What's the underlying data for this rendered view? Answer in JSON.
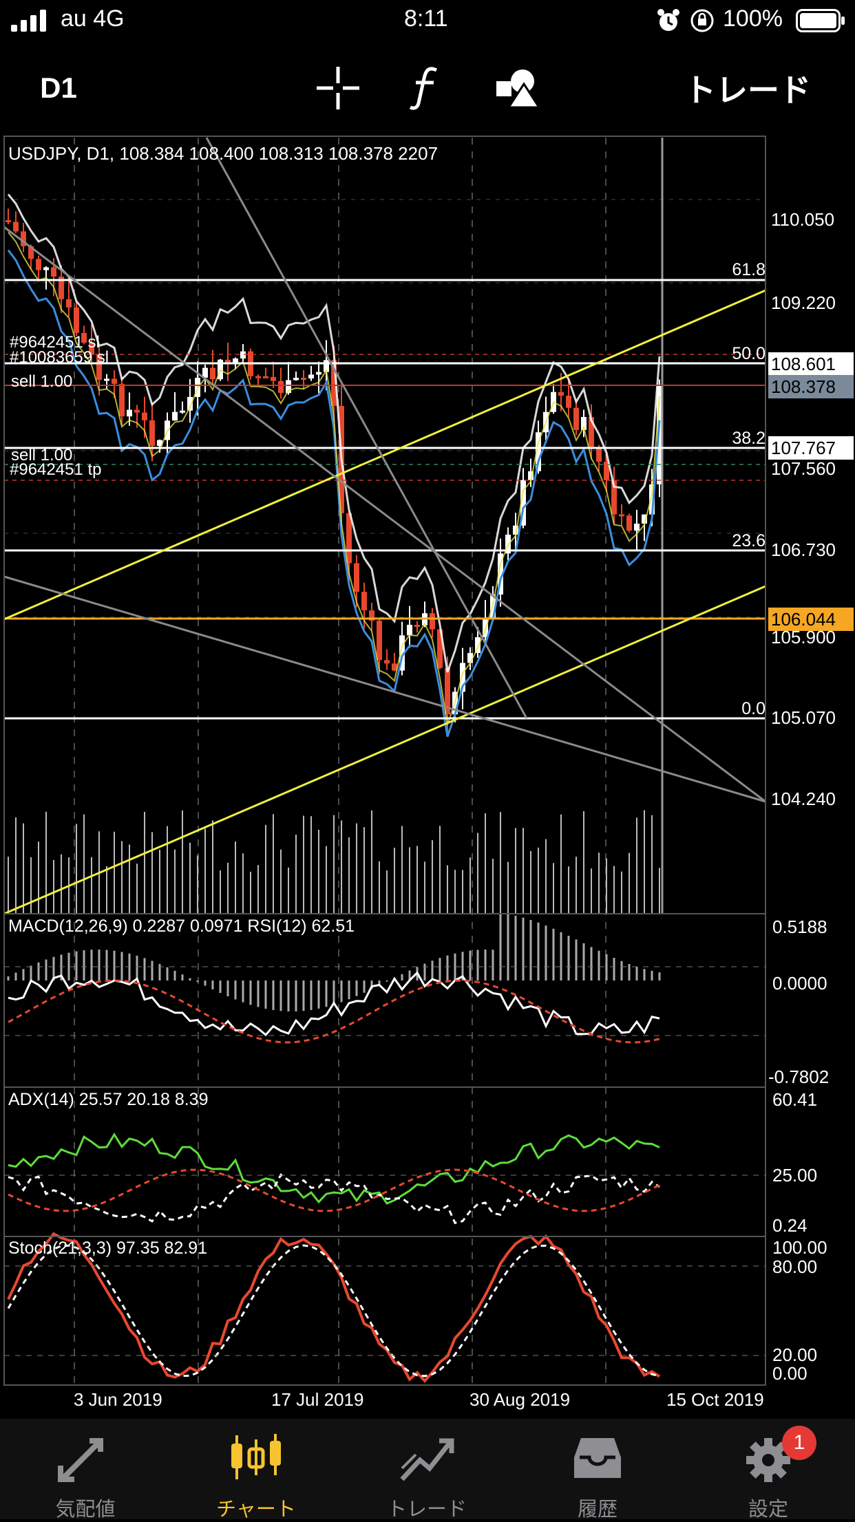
{
  "status_bar": {
    "carrier": "au 4G",
    "time": "8:11",
    "battery": "100%",
    "icons": [
      "signal-bars-icon",
      "alarm-icon",
      "orientation-lock-icon",
      "battery-icon"
    ]
  },
  "toolbar": {
    "timeframe": "D1",
    "trade_label": "トレード",
    "icons": [
      "crosshair-icon",
      "function-icon",
      "objects-icon"
    ]
  },
  "chart": {
    "header": "USDJPY, D1, 108.384 108.400 108.313 108.378 2207",
    "price_levels": [
      "110.050",
      "109.220",
      "108.601",
      "108.378",
      "107.767",
      "107.560",
      "106.730",
      "106.044",
      "105.900",
      "105.070",
      "104.240"
    ],
    "fib_labels": [
      "61.8",
      "50.0",
      "38.2",
      "23.6",
      "0.0"
    ],
    "order_labels": [
      "#9642451 sl",
      "#10083659 sl",
      "sell 1.00",
      "sell 1.00",
      "#9642451 tp"
    ],
    "macd": {
      "label": "MACD(12,26,9) 0.2287 0.0971 RSI(12) 62.51",
      "scale": [
        "0.5188",
        "0.0000",
        "-0.7802"
      ]
    },
    "adx": {
      "label": "ADX(14) 25.57 20.18 8.39",
      "scale": [
        "60.41",
        "25.00",
        "0.24"
      ]
    },
    "stoch": {
      "label": "Stoch(21,3,3) 97.35 82.91",
      "scale": [
        "100.00",
        "80.00",
        "20.00",
        "0.00"
      ]
    },
    "dates": [
      "3 Jun 2019",
      "17 Jul 2019",
      "30 Aug 2019",
      "15 Oct 2019"
    ],
    "colors": {
      "bull": "#ffffff",
      "bear": "#e8482e",
      "macd_signal": "#e8482e",
      "adx_plus": "#5dde3a",
      "highlight_price": "#f5a623",
      "trend": "#f0f040"
    }
  },
  "tabbar": {
    "tabs": [
      {
        "label": "気配値",
        "icon": "quotes-arrows-icon"
      },
      {
        "label": "チャート",
        "icon": "candlestick-chart-icon"
      },
      {
        "label": "トレード",
        "icon": "trade-trend-icon"
      },
      {
        "label": "履歴",
        "icon": "history-inbox-icon"
      },
      {
        "label": "設定",
        "icon": "settings-gear-icon"
      }
    ],
    "active": "チャート",
    "settings_badge": "1"
  }
}
